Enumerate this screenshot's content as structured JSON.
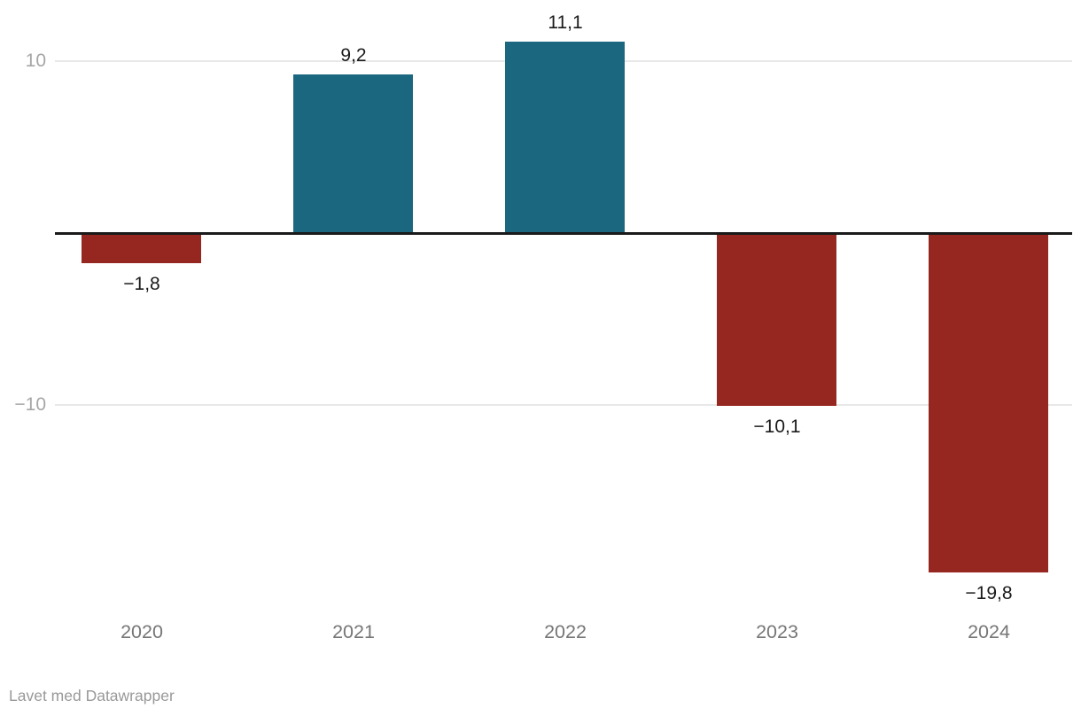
{
  "chart_data": {
    "type": "bar",
    "categories": [
      "2020",
      "2021",
      "2022",
      "2023",
      "2024"
    ],
    "values": [
      -1.8,
      9.2,
      11.1,
      -10.1,
      -19.8
    ],
    "value_labels": [
      "−1,8",
      "9,2",
      "11,1",
      "−10,1",
      "−19,8"
    ],
    "title": "",
    "xlabel": "",
    "ylabel": "",
    "ylim": [
      -22,
      12
    ],
    "yticks": [
      10,
      -10
    ],
    "ytick_labels": [
      "10",
      "−10"
    ],
    "grid": true,
    "legend": "none",
    "decimal_separator": ",",
    "positive_color": "#1b6780",
    "negative_color": "#952720"
  },
  "colors": {
    "background": "#ffffff",
    "gridline": "#e8e8e8",
    "zero_axis": "#1a1a1a",
    "value_label_text": "#1a1a1a",
    "category_label_text": "#767676",
    "ytick_text": "#a6a6a6",
    "footer_text": "#999999"
  },
  "footer": {
    "credit": "Lavet med Datawrapper"
  }
}
